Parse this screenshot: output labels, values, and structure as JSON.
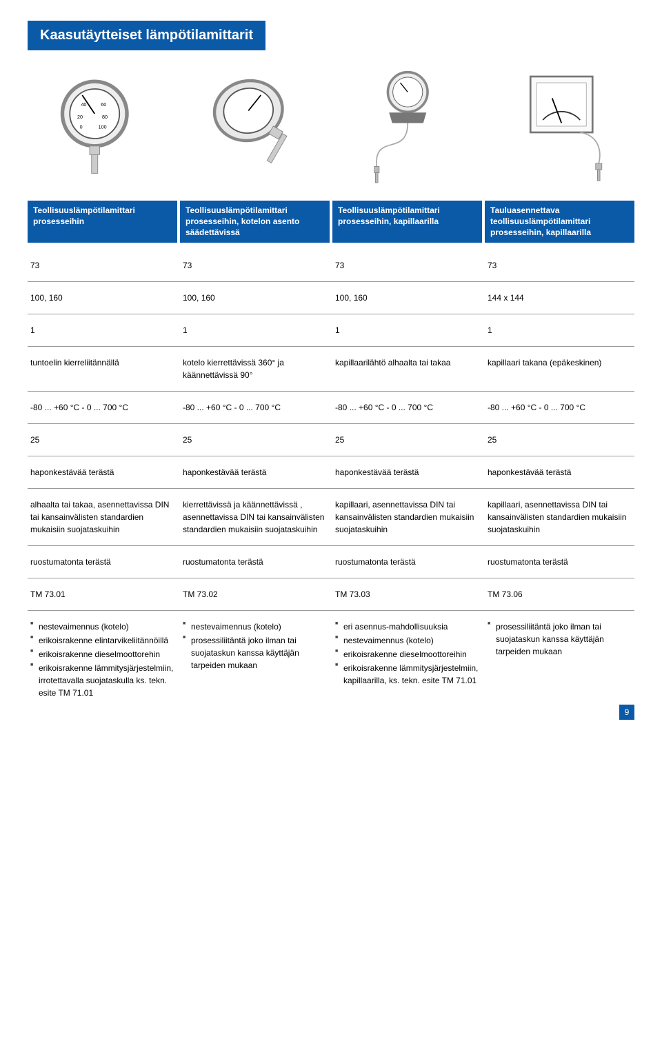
{
  "title": "Kaasutäytteiset lämpötilamittarit",
  "colors": {
    "brand": "#0b5aa8",
    "text": "#000",
    "bg": "#fff",
    "rule": "#999"
  },
  "columns": [
    {
      "header": "Teollisuuslämpötilamittari prosesseihin"
    },
    {
      "header": "Teollisuuslämpötilamittari prosesseihin, kotelon asento säädettävissä"
    },
    {
      "header": "Teollisuuslämpötilamittari prosesseihin, kapillaarilla"
    },
    {
      "header": "Tauluasennettava teollisuuslämpötilamittari prosesseihin, kapillaarilla"
    }
  ],
  "rows": {
    "r1": [
      "73",
      "73",
      "73",
      "73"
    ],
    "r2": [
      "100, 160",
      "100, 160",
      "100, 160",
      "144 x 144"
    ],
    "r3": [
      "1",
      "1",
      "1",
      "1"
    ],
    "r4": [
      "tuntoelin kierreliitännällä",
      "kotelo kierrettävissä 360° ja käännettävissä 90°",
      "kapillaarilähtö alhaalta tai takaa",
      "kapillaari takana (epäkeskinen)"
    ],
    "r5": [
      "-80 ... +60 °C  -  0 ... 700 °C",
      "-80 ... +60 °C  -  0 ... 700 °C",
      "-80 ... +60 °C  -  0 ... 700 °C",
      "-80 ... +60 °C  -  0 ... 700 °C"
    ],
    "r6": [
      "25",
      "25",
      "25",
      "25"
    ],
    "r7": [
      "haponkestävää terästä",
      "haponkestävää terästä",
      "haponkestävää terästä",
      "haponkestävää terästä"
    ],
    "r8": [
      "alhaalta tai takaa, asennettavissa DIN tai kansainvälisten standardien mukaisiin suojataskuihin",
      "kierrettävissä ja käännettävissä , asennettavissa DIN tai kansainvälisten standardien mukaisiin suojataskuihin",
      "kapillaari, asennettavissa DIN tai kansainvälisten standardien mukaisiin suojataskuihin",
      "kapillaari, asennettavissa DIN tai kansainvälisten standardien mukaisiin suojataskuihin"
    ],
    "r9": [
      "ruostumatonta terästä",
      "ruostumatonta terästä",
      "ruostumatonta terästä",
      "ruostumatonta terästä"
    ],
    "r10": [
      "TM 73.01",
      "TM 73.02",
      "TM 73.03",
      "TM 73.06"
    ]
  },
  "bullets": {
    "c0": [
      "nestevaimennus (kotelo)",
      "erikoisrakenne elintarvikeliitännöillä",
      "erikoisrakenne dieselmoottorehin",
      "erikoisrakenne lämmitysjärjestelmiin, irrotettavalla suojataskulla ks. tekn. esite TM 71.01"
    ],
    "c1": [
      "nestevaimennus (kotelo)",
      "prosessiliitäntä joko ilman tai suojataskun kanssa käyttäjän tarpeiden mukaan"
    ],
    "c2": [
      "eri asennus-mahdollisuuksia",
      "nestevaimennus (kotelo)",
      "erikoisrakenne dieselmoottoreihin",
      "erikoisrakenne lämmitysjärjestelmiin, kapillaarilla, ks. tekn. esite TM 71.01"
    ],
    "c3": [
      "prosessiliitäntä joko ilman tai suojataskun kanssa käyttäjän tarpeiden mukaan"
    ]
  },
  "page_num": "9"
}
